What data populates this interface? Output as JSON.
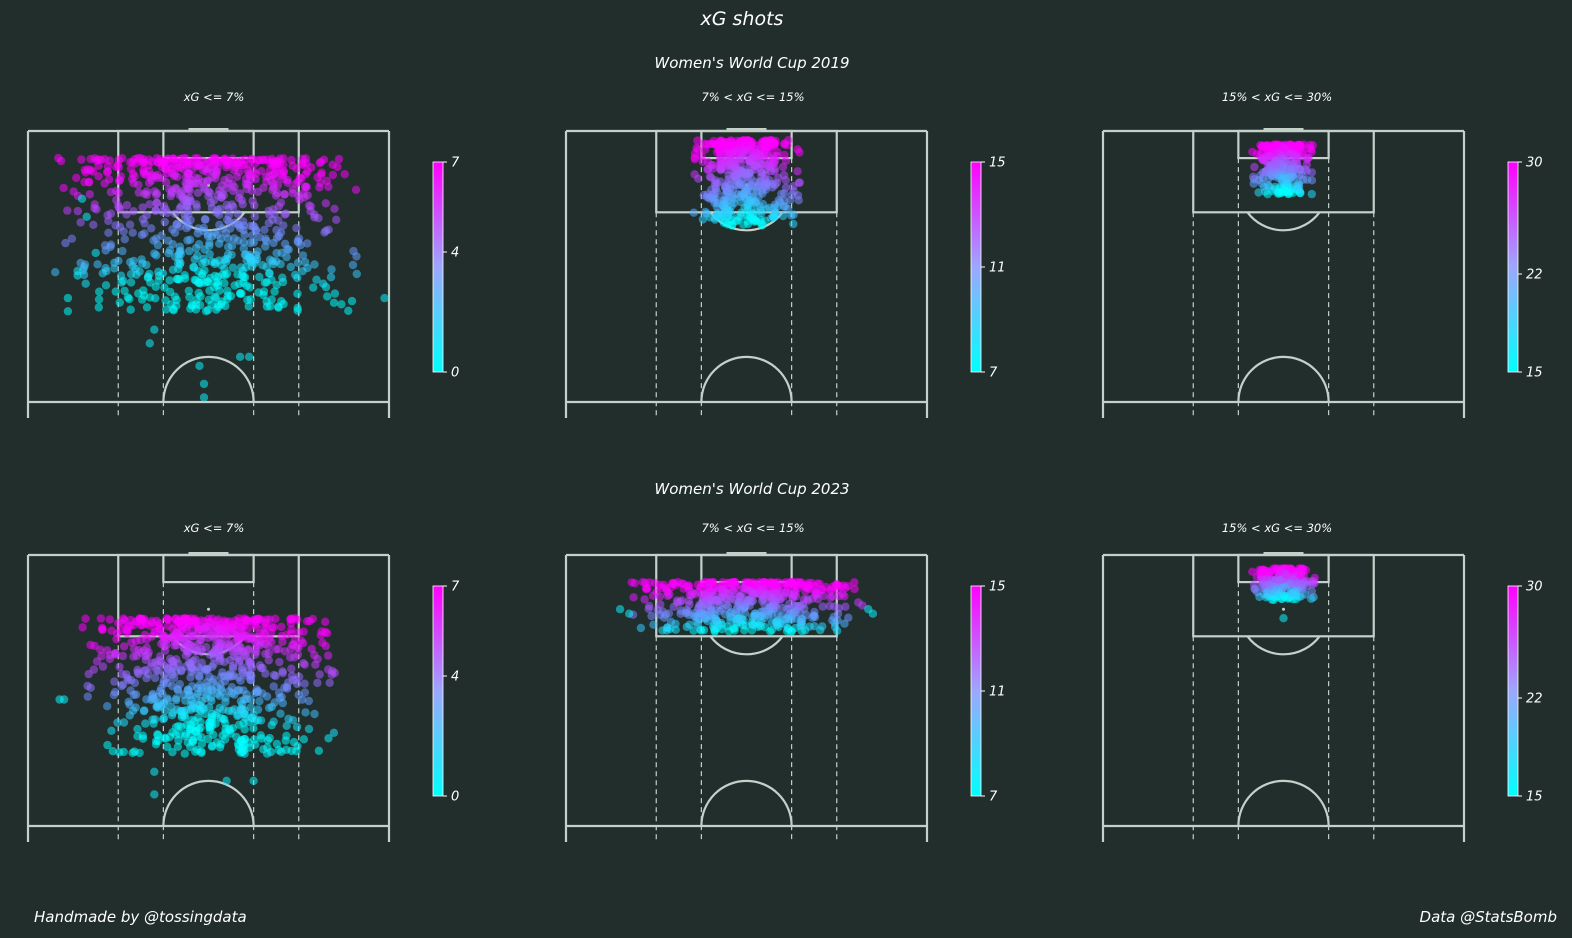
{
  "title": "xG shots",
  "footer": {
    "left": "Handmade by @tossingdata",
    "right": "Data @StatsBomb"
  },
  "colors": {
    "background": "#212e2b",
    "pitch_lines": "#c4d1cb",
    "text": "#ffffff",
    "colormap_low": "#00ffff",
    "colormap_high": "#ff00ff"
  },
  "chart_data": [
    {
      "type": "scatter",
      "title": "xG <= 7%",
      "group": "Women's World Cup 2019",
      "colorbar": {
        "min": 0,
        "max": 7,
        "ticks": [
          0,
          4,
          7
        ]
      },
      "distribution": {
        "depth_min": 6,
        "depth_max": 40,
        "width_spread": 34,
        "count": 780
      },
      "outliers": [
        [
          -28,
          15
        ],
        [
          -27,
          19
        ],
        [
          -25,
          27
        ],
        [
          -29,
          31
        ],
        [
          -29,
          32
        ],
        [
          28,
          36
        ],
        [
          39,
          37
        ],
        [
          -12,
          44
        ],
        [
          -13,
          47
        ],
        [
          -2,
          52
        ],
        [
          7,
          50
        ],
        [
          9,
          50
        ],
        [
          -1,
          56
        ],
        [
          -1,
          59
        ],
        [
          -1,
          62
        ],
        [
          8,
          61
        ],
        [
          -2,
          69
        ]
      ]
    },
    {
      "type": "scatter",
      "title": "7% < xG <= 15%",
      "group": "Women's World Cup 2019",
      "colorbar": {
        "min": 7,
        "max": 15,
        "ticks": [
          7,
          11,
          15
        ]
      },
      "distribution": {
        "depth_min": 2,
        "depth_max": 21,
        "width_spread": 12,
        "count": 460
      },
      "outliers": []
    },
    {
      "type": "scatter",
      "title": "15% < xG <= 30%",
      "group": "Women's World Cup 2019",
      "colorbar": {
        "min": 15,
        "max": 30,
        "ticks": [
          15,
          22,
          30
        ]
      },
      "distribution": {
        "depth_min": 3,
        "depth_max": 14,
        "width_spread": 7,
        "count": 260
      },
      "outliers": []
    },
    {
      "type": "scatter",
      "title": "xG <= 7%",
      "group": "Women's World Cup 2023",
      "colorbar": {
        "min": 0,
        "max": 7,
        "ticks": [
          0,
          4,
          7
        ]
      },
      "distribution": {
        "depth_min": 14,
        "depth_max": 44,
        "width_spread": 28,
        "count": 820
      },
      "outliers": [
        [
          -32,
          32
        ],
        [
          -33,
          32
        ],
        [
          13,
          44
        ],
        [
          8,
          44
        ],
        [
          -12,
          48
        ],
        [
          -12,
          53
        ],
        [
          4,
          50
        ],
        [
          10,
          50
        ],
        [
          -12,
          66
        ]
      ]
    },
    {
      "type": "scatter",
      "title": "7% < xG <= 15%",
      "group": "Women's World Cup 2023",
      "colorbar": {
        "min": 7,
        "max": 15,
        "ticks": [
          7,
          11,
          15
        ]
      },
      "distribution": {
        "depth_min": 6,
        "depth_max": 17,
        "width_spread": 26,
        "count": 520
      },
      "outliers": [
        [
          -28,
          12
        ],
        [
          -26,
          13
        ],
        [
          28,
          13
        ],
        [
          27,
          12
        ]
      ]
    },
    {
      "type": "scatter",
      "title": "15% < xG <= 30%",
      "group": "Women's World Cup 2023",
      "colorbar": {
        "min": 15,
        "max": 30,
        "ticks": [
          15,
          22,
          30
        ]
      },
      "distribution": {
        "depth_min": 3,
        "depth_max": 10,
        "width_spread": 7,
        "count": 230
      },
      "outliers": [
        [
          0,
          14
        ]
      ]
    }
  ]
}
